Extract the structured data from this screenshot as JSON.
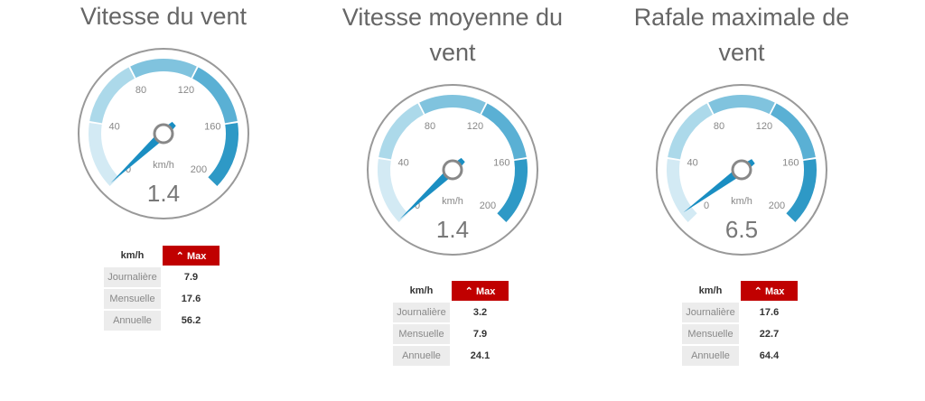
{
  "gauge_scale": {
    "min": 0,
    "max": 200,
    "ticks": [
      "0",
      "40",
      "80",
      "120",
      "160",
      "200"
    ],
    "unit": "km/h",
    "band_colors": [
      "#d3eaf4",
      "#acd9ea",
      "#80c3de",
      "#5ab0d4",
      "#2e99c6"
    ],
    "needle_color": "#1a8ec2"
  },
  "panels": [
    {
      "title": "Vitesse du vent",
      "value": "1.4",
      "table": {
        "unit": "km/h",
        "max_label": "Max",
        "rows": [
          {
            "label": "Journalière",
            "value": "7.9"
          },
          {
            "label": "Mensuelle",
            "value": "17.6"
          },
          {
            "label": "Annuelle",
            "value": "56.2"
          }
        ]
      }
    },
    {
      "title": "Vitesse moyenne du vent",
      "value": "1.4",
      "table": {
        "unit": "km/h",
        "max_label": "Max",
        "rows": [
          {
            "label": "Journalière",
            "value": "3.2"
          },
          {
            "label": "Mensuelle",
            "value": "7.9"
          },
          {
            "label": "Annuelle",
            "value": "24.1"
          }
        ]
      }
    },
    {
      "title": "Rafale maximale de vent",
      "value": "6.5",
      "table": {
        "unit": "km/h",
        "max_label": "Max",
        "rows": [
          {
            "label": "Journalière",
            "value": "17.6"
          },
          {
            "label": "Mensuelle",
            "value": "22.7"
          },
          {
            "label": "Annuelle",
            "value": "64.4"
          }
        ]
      }
    }
  ]
}
